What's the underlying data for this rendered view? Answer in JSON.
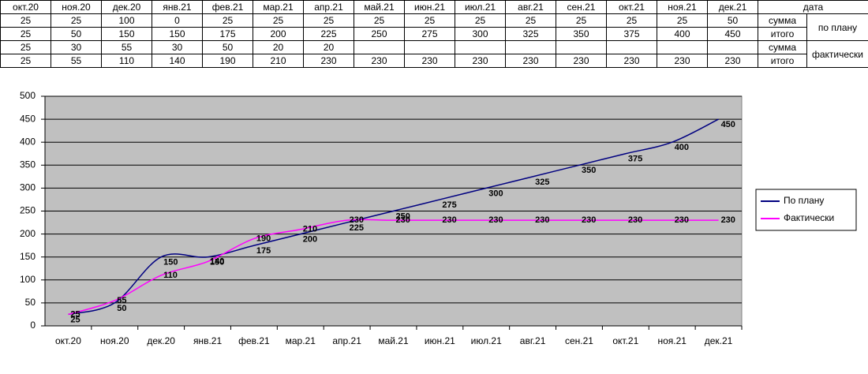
{
  "table": {
    "header": {
      "months": [
        "окт.20",
        "ноя.20",
        "дек.20",
        "янв.21",
        "фев.21",
        "мар.21",
        "апр.21",
        "май.21",
        "июн.21",
        "июл.21",
        "авг.21",
        "сен.21",
        "окт.21",
        "ноя.21",
        "дек.21"
      ],
      "label": "дата"
    },
    "groups": [
      {
        "label": "по плану",
        "sum_label": "сумма",
        "total_label": "итого",
        "sum": [
          25,
          25,
          100,
          0,
          25,
          25,
          25,
          25,
          25,
          25,
          25,
          25,
          25,
          25,
          50
        ],
        "total": [
          25,
          50,
          150,
          150,
          175,
          200,
          225,
          250,
          275,
          300,
          325,
          350,
          375,
          400,
          450
        ]
      },
      {
        "label": "фактически",
        "sum_label": "сумма",
        "total_label": "итого",
        "sum": [
          25,
          30,
          55,
          30,
          50,
          20,
          20,
          null,
          null,
          null,
          null,
          null,
          null,
          null,
          null
        ],
        "total": [
          25,
          55,
          110,
          140,
          190,
          210,
          230,
          230,
          230,
          230,
          230,
          230,
          230,
          230,
          230
        ]
      }
    ]
  },
  "chart_data": {
    "type": "line",
    "categories": [
      "окт.20",
      "ноя.20",
      "дек.20",
      "янв.21",
      "фев.21",
      "мар.21",
      "апр.21",
      "май.21",
      "июн.21",
      "июл.21",
      "авг.21",
      "сен.21",
      "окт.21",
      "ноя.21",
      "дек.21"
    ],
    "series": [
      {
        "name": "По плану",
        "color": "#000080",
        "values": [
          25,
          50,
          150,
          150,
          175,
          200,
          225,
          250,
          275,
          300,
          325,
          350,
          375,
          400,
          450
        ]
      },
      {
        "name": "Фактически",
        "color": "#ff00ff",
        "values": [
          25,
          55,
          110,
          140,
          190,
          210,
          230,
          230,
          230,
          230,
          230,
          230,
          230,
          230,
          230
        ]
      }
    ],
    "ylim": [
      0,
      500
    ],
    "yticks": [
      0,
      50,
      100,
      150,
      200,
      250,
      300,
      350,
      400,
      450,
      500
    ],
    "grid": true,
    "smooth": true,
    "data_labels": true,
    "legend": "right",
    "plot_background": "#c0c0c0"
  }
}
